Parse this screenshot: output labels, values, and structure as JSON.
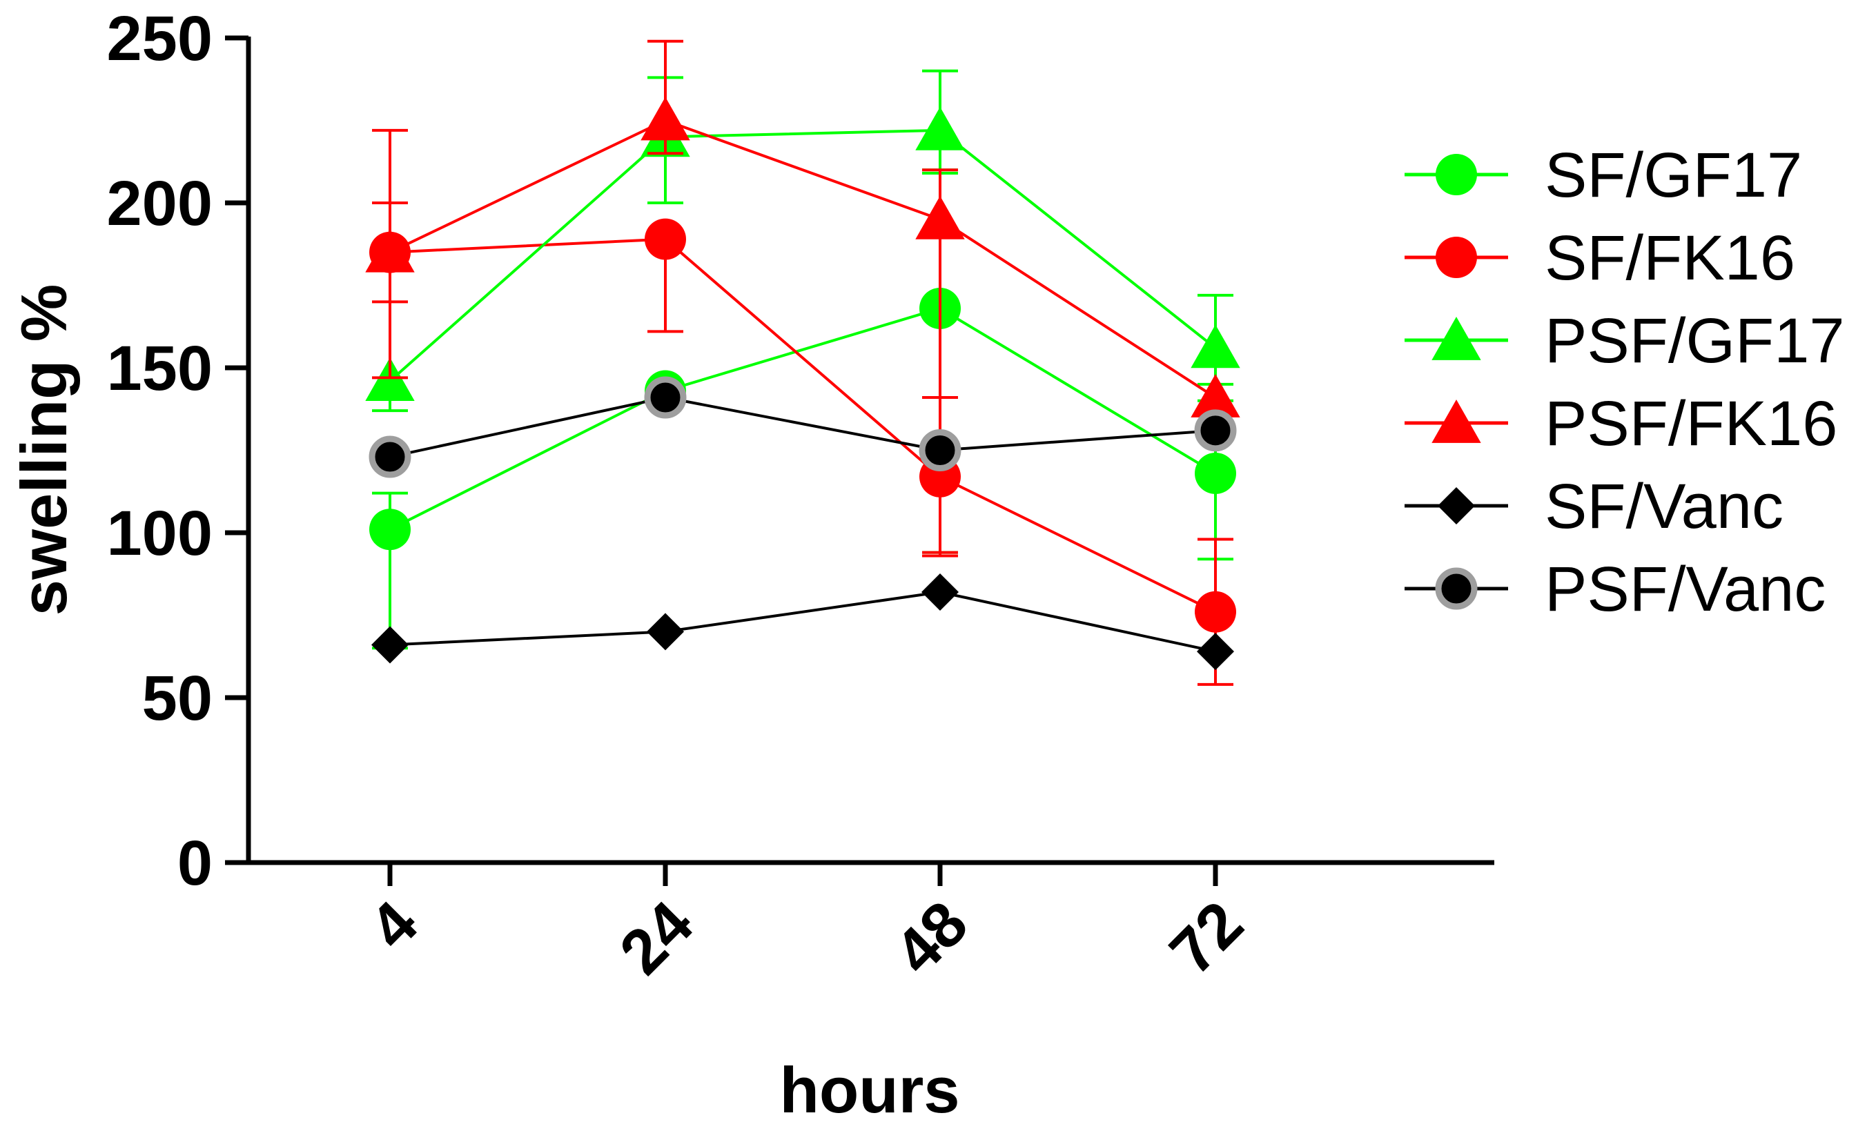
{
  "chart_data": {
    "type": "line",
    "title": "",
    "xlabel": "hours",
    "ylabel": "swelling %",
    "categories": [
      "4",
      "24",
      "48",
      "72"
    ],
    "ylim": [
      0,
      250
    ],
    "yticks": [
      0,
      50,
      100,
      150,
      200,
      250
    ],
    "grid": false,
    "legend_position": "right",
    "series": [
      {
        "name": "SF/GF17",
        "color": "#00ff00",
        "marker": "circle",
        "values": [
          101,
          143,
          168,
          118
        ],
        "err_plus": [
          11,
          0,
          42,
          27
        ],
        "err_minus": [
          36,
          0,
          74,
          26
        ]
      },
      {
        "name": "SF/FK16",
        "color": "#ff0000",
        "marker": "circle",
        "values": [
          185,
          189,
          117,
          76
        ],
        "err_plus": [
          15,
          0,
          24,
          22
        ],
        "err_minus": [
          15,
          28,
          23,
          22
        ]
      },
      {
        "name": "PSF/GF17",
        "color": "#00ff00",
        "marker": "triangle",
        "values": [
          146,
          220,
          222,
          156
        ],
        "err_plus": [
          35,
          18,
          18,
          16
        ],
        "err_minus": [
          9,
          20,
          13,
          16
        ]
      },
      {
        "name": "PSF/FK16",
        "color": "#ff0000",
        "marker": "triangle",
        "values": [
          185,
          225,
          195,
          141
        ],
        "err_plus": [
          37,
          24,
          15,
          0
        ],
        "err_minus": [
          38,
          10,
          102,
          0
        ]
      },
      {
        "name": "SF/Vanc",
        "color": "#000000",
        "marker": "diamond",
        "values": [
          66,
          70,
          82,
          64
        ],
        "err_plus": [
          0,
          0,
          0,
          0
        ],
        "err_minus": [
          0,
          0,
          0,
          0
        ]
      },
      {
        "name": "PSF/Vanc",
        "color": "#000000",
        "marker": "circle-ring",
        "values": [
          123,
          141,
          125,
          131
        ],
        "err_plus": [
          0,
          0,
          0,
          0
        ],
        "err_minus": [
          0,
          0,
          0,
          0
        ]
      }
    ]
  }
}
